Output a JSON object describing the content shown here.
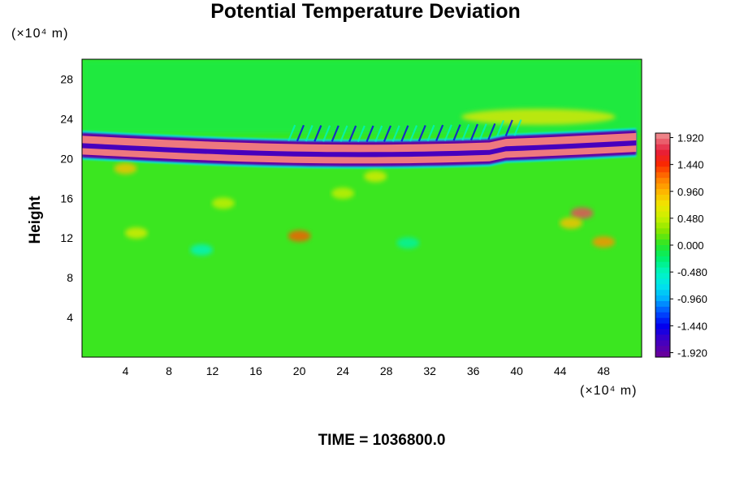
{
  "chart_data": {
    "type": "heatmap",
    "title": "Potential Temperature Deviation",
    "ylabel": "Height",
    "xlabel": "",
    "x_unit": "(×10⁴ m)",
    "y_unit": "(×10⁴ m)",
    "xlim": [
      0,
      51.5
    ],
    "ylim": [
      0,
      30
    ],
    "x_ticks": [
      4,
      8,
      12,
      16,
      20,
      24,
      28,
      32,
      36,
      40,
      44,
      48
    ],
    "y_ticks": [
      4,
      8,
      12,
      16,
      20,
      24,
      28
    ],
    "colorbar": {
      "range": [
        -2.0,
        2.0
      ],
      "tick_labels": [
        "1.920",
        "1.440",
        "0.960",
        "0.480",
        "0.000",
        "-0.480",
        "-0.960",
        "-1.440",
        "-1.920"
      ],
      "tick_values": [
        1.92,
        1.44,
        0.96,
        0.48,
        0.0,
        -0.48,
        -0.96,
        -1.44,
        -1.92
      ]
    },
    "features": [
      {
        "name": "strong inversion band (positive)",
        "y": [
          20.0,
          22.2
        ],
        "value": 1.92
      },
      {
        "name": "negative layers around the band",
        "y": [
          19.6,
          22.6
        ],
        "value": -1.92
      },
      {
        "name": "wave field above band",
        "x": [
          20,
          40
        ],
        "y": [
          22.5,
          24.5
        ],
        "value": -1.2
      },
      {
        "name": "warm patch upper right",
        "x": [
          36,
          48
        ],
        "y": [
          23,
          25.5
        ],
        "value": 0.7
      },
      {
        "name": "background",
        "value": 0.05
      }
    ],
    "footer": "TIME = 1036800.0"
  }
}
